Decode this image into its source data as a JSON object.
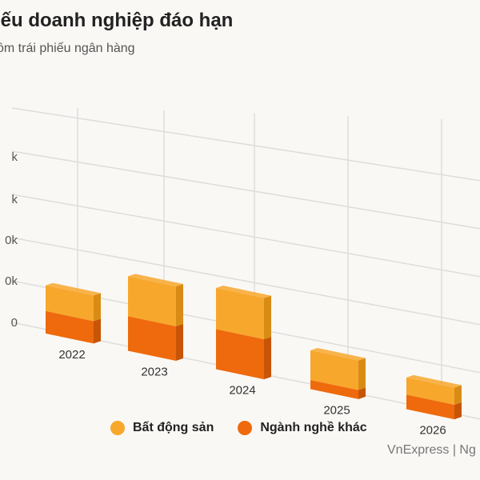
{
  "header": {
    "title": "iếu doanh nghiệp đáo hạn",
    "subtitle": "ồm trái phiếu ngân hàng"
  },
  "source": "VnExpress | Ng",
  "colors": {
    "bat_dong_san": "#f7a72b",
    "bat_dong_san_side": "#d98c15",
    "nganh_nghe_khac": "#ee6a0c",
    "nganh_nghe_khac_side": "#c85406",
    "grid": "#dddddd"
  },
  "chart_data": {
    "type": "bar",
    "stacked": true,
    "three_d": true,
    "categories": [
      "2022",
      "2023",
      "2024",
      "2025",
      "2026"
    ],
    "series": [
      {
        "name": "Ngành nghề khác",
        "values": [
          66,
          104,
          124,
          29,
          48
        ]
      },
      {
        "name": "Bất động sản",
        "values": [
          75,
          120,
          127,
          94,
          56
        ]
      }
    ],
    "ytick_labels": [
      "0",
      "0k",
      "0k",
      "k",
      "k"
    ],
    "grid": true,
    "legend_position": "bottom"
  }
}
